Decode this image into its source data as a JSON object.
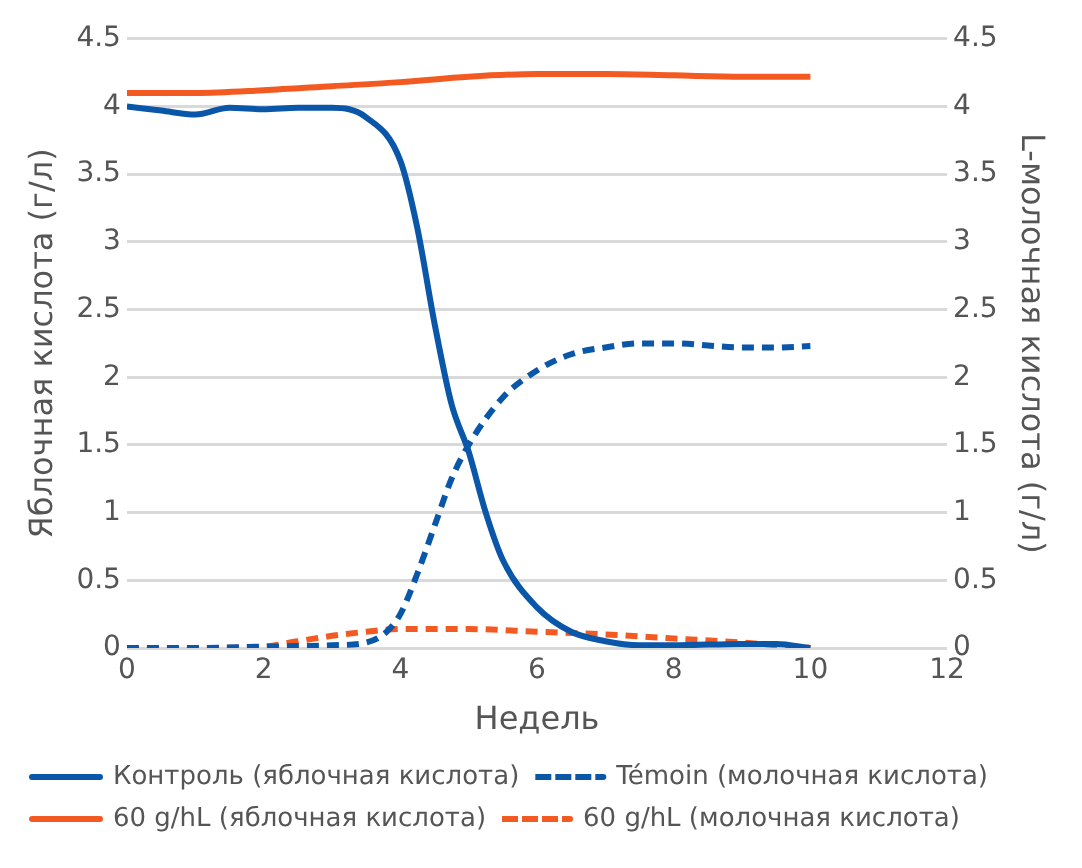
{
  "chart_data": {
    "type": "line",
    "xlabel": "Недель",
    "ylabel": "Яблочная кислота (г/л)",
    "y2label": "L-молочная кислота (г/л)",
    "xlim": [
      0,
      12
    ],
    "xticks": [
      0,
      2,
      4,
      6,
      8,
      10,
      12
    ],
    "ylim": [
      0,
      4.5
    ],
    "yticks": [
      0,
      0.5,
      1,
      1.5,
      2,
      2.5,
      3,
      3.5,
      4,
      4.5
    ],
    "y2lim": [
      0,
      4.5
    ],
    "y2ticks": [
      0,
      0.5,
      1,
      1.5,
      2,
      2.5,
      3,
      3.5,
      4,
      4.5
    ],
    "grid": "y",
    "legend": "bottom",
    "marker": "none",
    "series": [
      {
        "name": "Контроль (яблочная кислота)",
        "color": "#0a56a8",
        "line_style": "solid",
        "x": [
          0,
          0.5,
          1,
          1.5,
          2,
          2.5,
          3,
          3.5,
          4,
          4.25,
          4.5,
          4.75,
          5,
          5.25,
          5.5,
          6,
          6.5,
          7,
          7.5,
          8,
          9,
          9.5,
          10
        ],
        "values": [
          4.0,
          3.97,
          3.94,
          3.99,
          3.98,
          3.99,
          3.99,
          3.92,
          3.6,
          3.1,
          2.4,
          1.8,
          1.45,
          1.0,
          0.65,
          0.3,
          0.12,
          0.05,
          0.02,
          0.02,
          0.03,
          0.03,
          0
        ]
      },
      {
        "name": "Témoin (молочная кислота)",
        "color": "#0a56a8",
        "line_style": "dashed",
        "x": [
          0,
          1,
          2,
          3,
          3.5,
          3.8,
          4,
          4.25,
          4.5,
          4.75,
          5,
          5.5,
          6,
          6.5,
          7,
          7.5,
          8,
          9,
          9.5,
          10
        ],
        "values": [
          0,
          0,
          0.01,
          0.02,
          0.04,
          0.12,
          0.25,
          0.55,
          0.9,
          1.25,
          1.5,
          1.85,
          2.05,
          2.17,
          2.22,
          2.25,
          2.25,
          2.22,
          2.22,
          2.23
        ]
      },
      {
        "name": "60 g/hL (яблочная кислота)",
        "color": "#f25a22",
        "line_style": "solid",
        "x": [
          0,
          1,
          2,
          3,
          4,
          5,
          6,
          7,
          8,
          9,
          10
        ],
        "values": [
          4.1,
          4.1,
          4.12,
          4.15,
          4.18,
          4.22,
          4.24,
          4.24,
          4.23,
          4.22,
          4.22
        ]
      },
      {
        "name": "60 g/hL (молочная кислота)",
        "color": "#f25a22",
        "line_style": "dashed",
        "x": [
          0,
          1,
          2,
          2.5,
          3,
          3.5,
          4,
          5,
          6,
          7,
          8,
          9,
          10
        ],
        "values": [
          0,
          0,
          0.01,
          0.05,
          0.09,
          0.12,
          0.14,
          0.14,
          0.12,
          0.1,
          0.07,
          0.04,
          0
        ]
      }
    ]
  }
}
